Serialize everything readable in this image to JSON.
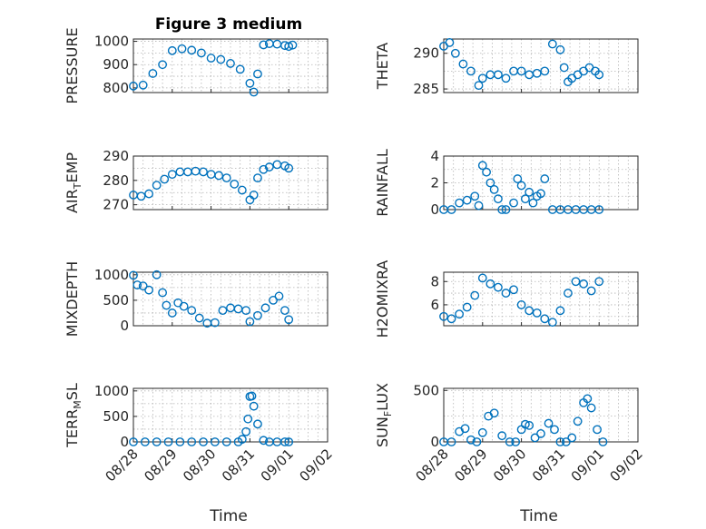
{
  "figure": {
    "title": "Figure 3 medium",
    "marker_color": "#0072bd",
    "x_axis_label": "Time",
    "x_tick_labels": [
      "08/28",
      "08/29",
      "08/30",
      "08/31",
      "09/01",
      "09/02"
    ]
  },
  "chart_data": [
    {
      "type": "scatter",
      "title": "Figure 3 medium",
      "ylabel": "PRESSURE",
      "ylim": [
        780,
        1010
      ],
      "yticks": [
        800,
        900,
        1000
      ],
      "xlim": [
        "08/28",
        "09/02"
      ],
      "grid": true,
      "series": [
        {
          "x": [
            0.0,
            0.25,
            0.5,
            0.75,
            1.0,
            1.25,
            1.5,
            1.75,
            2.0,
            2.25,
            2.5,
            2.75,
            3.0,
            3.1,
            3.2,
            3.35,
            3.5,
            3.7,
            3.9,
            4.0,
            4.1
          ],
          "y": [
            808,
            812,
            862,
            900,
            960,
            968,
            962,
            950,
            928,
            922,
            905,
            880,
            820,
            782,
            860,
            985,
            990,
            988,
            982,
            978,
            984
          ]
        }
      ]
    },
    {
      "type": "scatter",
      "ylabel": "THETA",
      "ylim": [
        284.5,
        292
      ],
      "yticks": [
        285,
        290
      ],
      "xlim": [
        "08/28",
        "09/02"
      ],
      "grid": true,
      "series": [
        {
          "x": [
            0.0,
            0.15,
            0.3,
            0.5,
            0.7,
            0.9,
            1.0,
            1.2,
            1.4,
            1.6,
            1.8,
            2.0,
            2.2,
            2.4,
            2.6,
            2.8,
            3.0,
            3.1,
            3.2,
            3.3,
            3.45,
            3.6,
            3.75,
            3.9,
            4.0
          ],
          "y": [
            291,
            291.5,
            290,
            288.5,
            287.5,
            285.5,
            286.5,
            287,
            287,
            286.5,
            287.5,
            287.5,
            287,
            287.2,
            287.5,
            291.3,
            290.5,
            288,
            286,
            286.5,
            287,
            287.5,
            288,
            287.5,
            287
          ]
        }
      ]
    },
    {
      "type": "scatter",
      "ylabel": "AIR_TEMP",
      "ylim": [
        268,
        290
      ],
      "yticks": [
        270,
        280,
        290
      ],
      "xlim": [
        "08/28",
        "09/02"
      ],
      "grid": true,
      "series": [
        {
          "x": [
            0.0,
            0.2,
            0.4,
            0.6,
            0.8,
            1.0,
            1.2,
            1.4,
            1.6,
            1.8,
            2.0,
            2.2,
            2.4,
            2.6,
            2.8,
            3.0,
            3.1,
            3.2,
            3.35,
            3.5,
            3.7,
            3.9,
            4.0
          ],
          "y": [
            274,
            273.5,
            274.5,
            278,
            280.5,
            282.5,
            283.5,
            283.5,
            283.8,
            283.5,
            282.5,
            282,
            281,
            278.5,
            276,
            272,
            274,
            281,
            284.5,
            285.5,
            286.5,
            286,
            285
          ]
        }
      ]
    },
    {
      "type": "scatter",
      "ylabel": "RAINFALL",
      "ylim": [
        0,
        4
      ],
      "yticks": [
        0,
        2,
        4
      ],
      "xlim": [
        "08/28",
        "09/02"
      ],
      "grid": true,
      "series": [
        {
          "x": [
            0.0,
            0.2,
            0.4,
            0.6,
            0.8,
            0.9,
            1.0,
            1.1,
            1.2,
            1.3,
            1.4,
            1.5,
            1.6,
            1.8,
            1.9,
            2.0,
            2.1,
            2.2,
            2.3,
            2.4,
            2.5,
            2.6,
            2.8,
            3.0,
            3.2,
            3.4,
            3.6,
            3.8,
            4.0
          ],
          "y": [
            0,
            0,
            0.5,
            0.7,
            1.0,
            0.3,
            3.3,
            2.8,
            2.0,
            1.5,
            0.8,
            0,
            0,
            0.5,
            2.3,
            1.8,
            0.8,
            1.3,
            0.5,
            1.0,
            1.2,
            2.3,
            0,
            0,
            0,
            0,
            0,
            0,
            0
          ]
        }
      ]
    },
    {
      "type": "scatter",
      "ylabel": "MIXDEPTH",
      "ylim": [
        0,
        1050
      ],
      "yticks": [
        0,
        500,
        1000
      ],
      "xlim": [
        "08/28",
        "09/02"
      ],
      "grid": true,
      "series": [
        {
          "x": [
            0.0,
            0.1,
            0.25,
            0.4,
            0.6,
            0.75,
            0.85,
            1.0,
            1.15,
            1.3,
            1.5,
            1.7,
            1.9,
            2.1,
            2.3,
            2.5,
            2.7,
            2.9,
            3.0,
            3.2,
            3.4,
            3.6,
            3.75,
            3.9,
            4.0
          ],
          "y": [
            990,
            800,
            780,
            700,
            1000,
            650,
            400,
            250,
            450,
            380,
            300,
            150,
            50,
            60,
            300,
            350,
            330,
            300,
            80,
            200,
            350,
            500,
            580,
            300,
            120
          ]
        }
      ]
    },
    {
      "type": "scatter",
      "ylabel": "H2OMIXRA",
      "ylim": [
        4.2,
        8.8
      ],
      "yticks": [
        6,
        8
      ],
      "xlim": [
        "08/28",
        "09/02"
      ],
      "grid": true,
      "series": [
        {
          "x": [
            0.0,
            0.2,
            0.4,
            0.6,
            0.8,
            1.0,
            1.2,
            1.4,
            1.6,
            1.8,
            2.0,
            2.2,
            2.4,
            2.6,
            2.8,
            3.0,
            3.2,
            3.4,
            3.6,
            3.8,
            4.0
          ],
          "y": [
            5.0,
            4.8,
            5.2,
            5.8,
            6.8,
            8.3,
            7.8,
            7.5,
            7.0,
            7.3,
            6.0,
            5.5,
            5.3,
            4.8,
            4.5,
            5.5,
            7.0,
            8.0,
            7.8,
            7.2,
            8.0
          ]
        }
      ]
    },
    {
      "type": "scatter",
      "ylabel": "TERR_MSL",
      "ylim": [
        0,
        1050
      ],
      "yticks": [
        0,
        500,
        1000
      ],
      "xlim": [
        "08/28",
        "09/02"
      ],
      "grid": true,
      "series": [
        {
          "x": [
            0.0,
            0.3,
            0.6,
            0.9,
            1.2,
            1.5,
            1.8,
            2.1,
            2.4,
            2.7,
            2.8,
            2.9,
            2.95,
            3.0,
            3.05,
            3.1,
            3.2,
            3.35,
            3.5,
            3.7,
            3.9,
            4.0
          ],
          "y": [
            0,
            0,
            0,
            0,
            0,
            0,
            0,
            0,
            0,
            0,
            50,
            200,
            450,
            890,
            900,
            700,
            350,
            30,
            0,
            0,
            0,
            0
          ]
        }
      ]
    },
    {
      "type": "scatter",
      "ylabel": "SUN_FLUX",
      "ylim": [
        0,
        520
      ],
      "yticks": [
        0,
        500
      ],
      "xlim": [
        "08/28",
        "09/02"
      ],
      "grid": true,
      "series": [
        {
          "x": [
            0.0,
            0.2,
            0.4,
            0.55,
            0.7,
            0.85,
            1.0,
            1.15,
            1.3,
            1.5,
            1.7,
            1.85,
            2.0,
            2.1,
            2.2,
            2.35,
            2.5,
            2.7,
            2.85,
            3.0,
            3.15,
            3.3,
            3.45,
            3.6,
            3.7,
            3.8,
            3.95,
            4.1
          ],
          "y": [
            0,
            0,
            100,
            130,
            20,
            0,
            90,
            250,
            280,
            60,
            0,
            0,
            120,
            170,
            160,
            40,
            80,
            180,
            120,
            0,
            0,
            40,
            200,
            380,
            420,
            330,
            120,
            0
          ]
        }
      ]
    }
  ]
}
